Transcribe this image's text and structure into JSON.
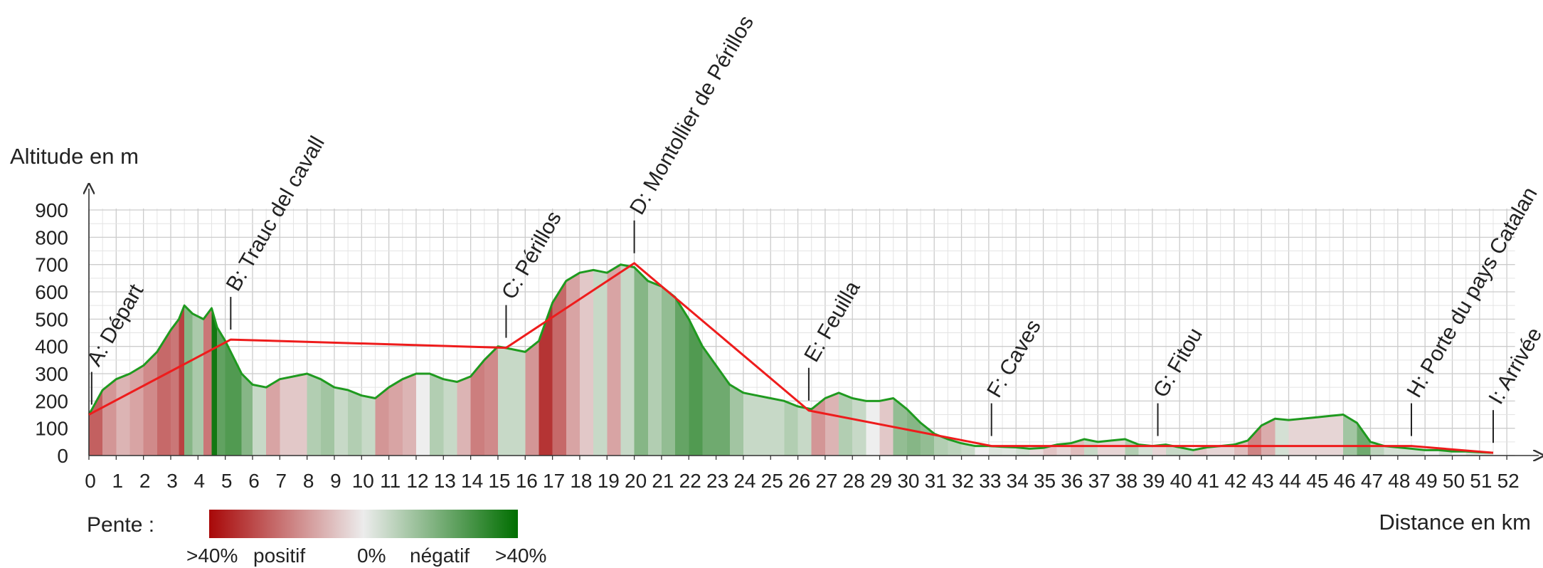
{
  "chart_data": {
    "type": "area",
    "xlabel": "Distance en km",
    "ylabel": "Altitude en m",
    "xlim": [
      0,
      52
    ],
    "ylim": [
      0,
      900
    ],
    "grid": true,
    "x_ticks": [
      "0",
      "1",
      "2",
      "3",
      "4",
      "5",
      "6",
      "7",
      "8",
      "9",
      "10",
      "11",
      "12",
      "13",
      "14",
      "15",
      "16",
      "17",
      "18",
      "19",
      "20",
      "21",
      "22",
      "23",
      "24",
      "25",
      "26",
      "27",
      "28",
      "29",
      "30",
      "31",
      "32",
      "33",
      "34",
      "35",
      "36",
      "37",
      "38",
      "39",
      "40",
      "41",
      "42",
      "43",
      "44",
      "45",
      "46",
      "47",
      "48",
      "49",
      "50",
      "51",
      "52"
    ],
    "y_ticks": [
      "0",
      "100",
      "200",
      "300",
      "400",
      "500",
      "600",
      "700",
      "800",
      "900"
    ],
    "series": [
      {
        "type": "area",
        "color": "#1f9a1f",
        "x": [
          0,
          0.5,
          1,
          1.5,
          2,
          2.5,
          3,
          3.3,
          3.5,
          3.8,
          4.2,
          4.5,
          4.7,
          5,
          5.3,
          5.6,
          6,
          6.5,
          7,
          7.5,
          8,
          8.5,
          9,
          9.5,
          10,
          10.5,
          11,
          11.5,
          12,
          12.5,
          13,
          13.5,
          14,
          14.5,
          15,
          15.5,
          16,
          16.5,
          17,
          17.5,
          18,
          18.5,
          19,
          19.5,
          20,
          20.5,
          21,
          21.5,
          22,
          22.5,
          23,
          23.5,
          24,
          24.5,
          25,
          25.5,
          26,
          26.5,
          27,
          27.5,
          28,
          28.5,
          29,
          29.5,
          30,
          30.5,
          31,
          31.5,
          32,
          32.5,
          33,
          33.5,
          34,
          34.5,
          35,
          35.5,
          36,
          36.5,
          37,
          37.5,
          38,
          38.5,
          39,
          39.5,
          40,
          40.5,
          41,
          41.5,
          42,
          42.5,
          43,
          43.5,
          44,
          44.5,
          45,
          45.5,
          46,
          46.5,
          47,
          47.5,
          48,
          48.5,
          49,
          49.5,
          50,
          50.5,
          51,
          51.5
        ],
        "y": [
          150,
          240,
          280,
          300,
          330,
          380,
          460,
          500,
          550,
          520,
          500,
          540,
          470,
          420,
          360,
          300,
          260,
          250,
          280,
          290,
          300,
          280,
          250,
          240,
          220,
          210,
          250,
          280,
          300,
          300,
          280,
          270,
          290,
          350,
          400,
          390,
          380,
          420,
          560,
          640,
          670,
          680,
          670,
          700,
          690,
          640,
          620,
          580,
          500,
          400,
          330,
          260,
          230,
          220,
          210,
          200,
          180,
          170,
          210,
          230,
          210,
          200,
          200,
          210,
          170,
          120,
          80,
          60,
          45,
          35,
          35,
          32,
          30,
          25,
          28,
          40,
          45,
          60,
          50,
          55,
          60,
          40,
          35,
          40,
          30,
          20,
          30,
          35,
          40,
          55,
          110,
          135,
          130,
          135,
          140,
          145,
          150,
          120,
          50,
          35,
          30,
          25,
          20,
          20,
          15,
          15,
          12,
          10
        ]
      },
      {
        "type": "line",
        "color": "#ee1c1c",
        "x": [
          0,
          5.2,
          15.3,
          20,
          26.4,
          33.1,
          39.2,
          48.5,
          51.5
        ],
        "y": [
          150,
          425,
          395,
          705,
          165,
          35,
          35,
          35,
          10
        ]
      }
    ],
    "annotations": [
      {
        "label": "A: Départ",
        "x": 0.1,
        "y": 150
      },
      {
        "label": "B: Trauc del cavall",
        "x": 5.2,
        "y": 425
      },
      {
        "label": "C: Périllos",
        "x": 15.3,
        "y": 395
      },
      {
        "label": "D: Montollier de Périllos",
        "x": 20,
        "y": 705
      },
      {
        "label": "E: Feuilla",
        "x": 26.4,
        "y": 165
      },
      {
        "label": "F: Caves",
        "x": 33.1,
        "y": 35
      },
      {
        "label": "G: Fitou",
        "x": 39.2,
        "y": 35
      },
      {
        "label": "H: Porte du pays Catalan",
        "x": 48.5,
        "y": 35
      },
      {
        "label": "I: Arrivée",
        "x": 51.5,
        "y": 10
      }
    ],
    "legend": {
      "title": "Pente :",
      "colors": [
        "#a80808",
        "#ececec",
        "#006e00"
      ],
      "labels": [
        ">40%",
        "positif",
        "0%",
        "négatif",
        ">40%"
      ]
    }
  }
}
